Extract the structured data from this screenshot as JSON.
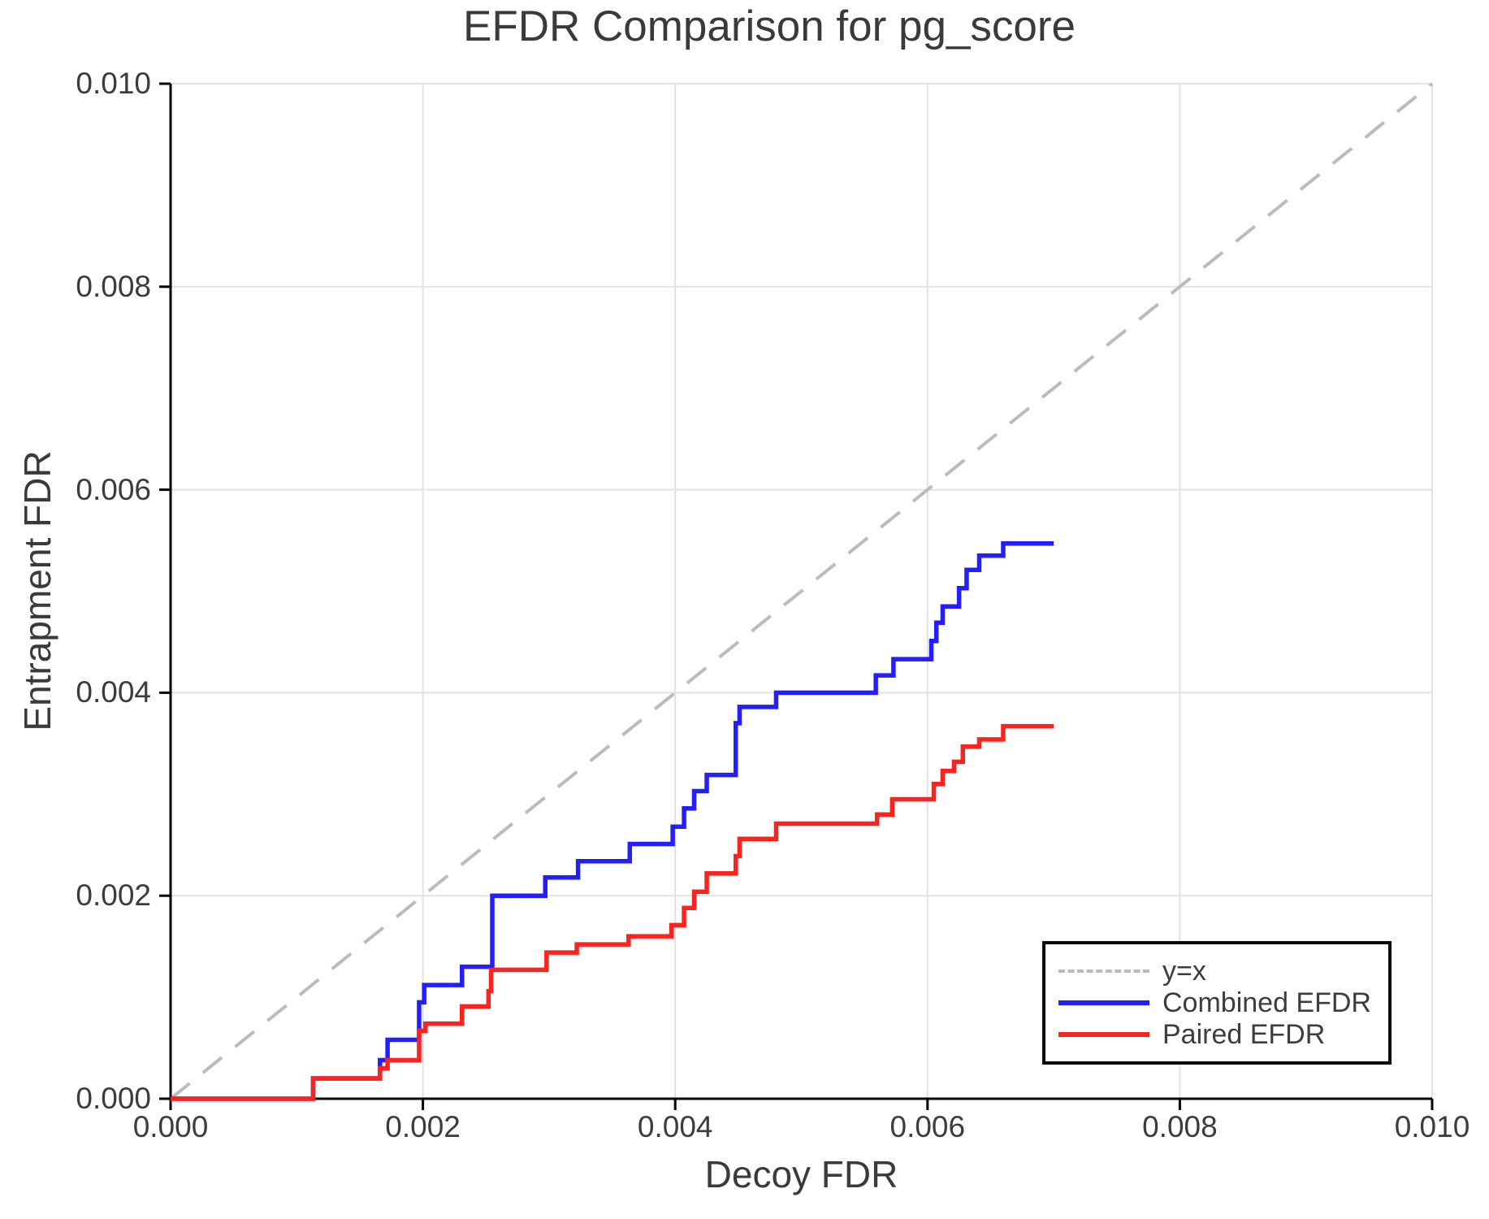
{
  "chart_data": {
    "type": "line",
    "title": "EFDR Comparison for pg_score",
    "xlabel": "Decoy FDR",
    "ylabel": "Entrapment FDR",
    "xlim": [
      0,
      0.01
    ],
    "ylim": [
      0,
      0.01
    ],
    "grid": true,
    "legend_position": "bottom-right",
    "xticks": {
      "values": [
        0,
        0.002,
        0.004,
        0.006,
        0.008,
        0.01
      ],
      "labels": [
        "0.000",
        "0.002",
        "0.004",
        "0.006",
        "0.008",
        "0.010"
      ]
    },
    "yticks": {
      "values": [
        0,
        0.002,
        0.004,
        0.006,
        0.008,
        0.01
      ],
      "labels": [
        "0.000",
        "0.002",
        "0.004",
        "0.006",
        "0.008",
        "0.010"
      ]
    },
    "colors": {
      "grid": "#e2e2e2",
      "axis": "#000000",
      "text": "#3c3c3c"
    },
    "series": [
      {
        "name": "y=x",
        "style": "dashed",
        "color": "#bbbbbb",
        "points": [
          [
            0,
            0
          ],
          [
            0.01,
            0.01
          ]
        ]
      },
      {
        "name": "Combined EFDR",
        "style": "step",
        "color": "#231efa",
        "points": [
          [
            0.0,
            0.0
          ],
          [
            0.00113,
            0.0002
          ],
          [
            0.00166,
            0.00038
          ],
          [
            0.00172,
            0.00058
          ],
          [
            0.00197,
            0.00095
          ],
          [
            0.00201,
            0.00112
          ],
          [
            0.00231,
            0.0013
          ],
          [
            0.00255,
            0.002
          ],
          [
            0.00297,
            0.00218
          ],
          [
            0.00323,
            0.00234
          ],
          [
            0.00364,
            0.00251
          ],
          [
            0.00398,
            0.00268
          ],
          [
            0.00407,
            0.00286
          ],
          [
            0.00415,
            0.00303
          ],
          [
            0.00425,
            0.00319
          ],
          [
            0.00448,
            0.0037
          ],
          [
            0.00451,
            0.00386
          ],
          [
            0.0048,
            0.004
          ],
          [
            0.00559,
            0.00417
          ],
          [
            0.00573,
            0.00433
          ],
          [
            0.00603,
            0.00451
          ],
          [
            0.00607,
            0.00469
          ],
          [
            0.00612,
            0.00485
          ],
          [
            0.00625,
            0.00503
          ],
          [
            0.00631,
            0.00521
          ],
          [
            0.00641,
            0.00535
          ],
          [
            0.0066,
            0.00547
          ],
          [
            0.007,
            0.00547
          ]
        ]
      },
      {
        "name": "Paired EFDR",
        "style": "step",
        "color": "#fa231e",
        "points": [
          [
            0.0,
            0.0
          ],
          [
            0.00113,
            0.0002
          ],
          [
            0.00166,
            0.0003
          ],
          [
            0.00172,
            0.00038
          ],
          [
            0.00197,
            0.00067
          ],
          [
            0.00202,
            0.00074
          ],
          [
            0.00231,
            0.00091
          ],
          [
            0.00252,
            0.00106
          ],
          [
            0.00254,
            0.00127
          ],
          [
            0.00298,
            0.00144
          ],
          [
            0.00322,
            0.00152
          ],
          [
            0.00363,
            0.0016
          ],
          [
            0.00397,
            0.00171
          ],
          [
            0.00407,
            0.00188
          ],
          [
            0.00415,
            0.00204
          ],
          [
            0.00425,
            0.00222
          ],
          [
            0.00448,
            0.00239
          ],
          [
            0.00451,
            0.00256
          ],
          [
            0.0048,
            0.00271
          ],
          [
            0.0056,
            0.0028
          ],
          [
            0.00572,
            0.00295
          ],
          [
            0.00605,
            0.0031
          ],
          [
            0.00612,
            0.00323
          ],
          [
            0.00621,
            0.00332
          ],
          [
            0.00628,
            0.00347
          ],
          [
            0.00641,
            0.00354
          ],
          [
            0.0066,
            0.00367
          ],
          [
            0.007,
            0.00367
          ]
        ]
      }
    ]
  }
}
